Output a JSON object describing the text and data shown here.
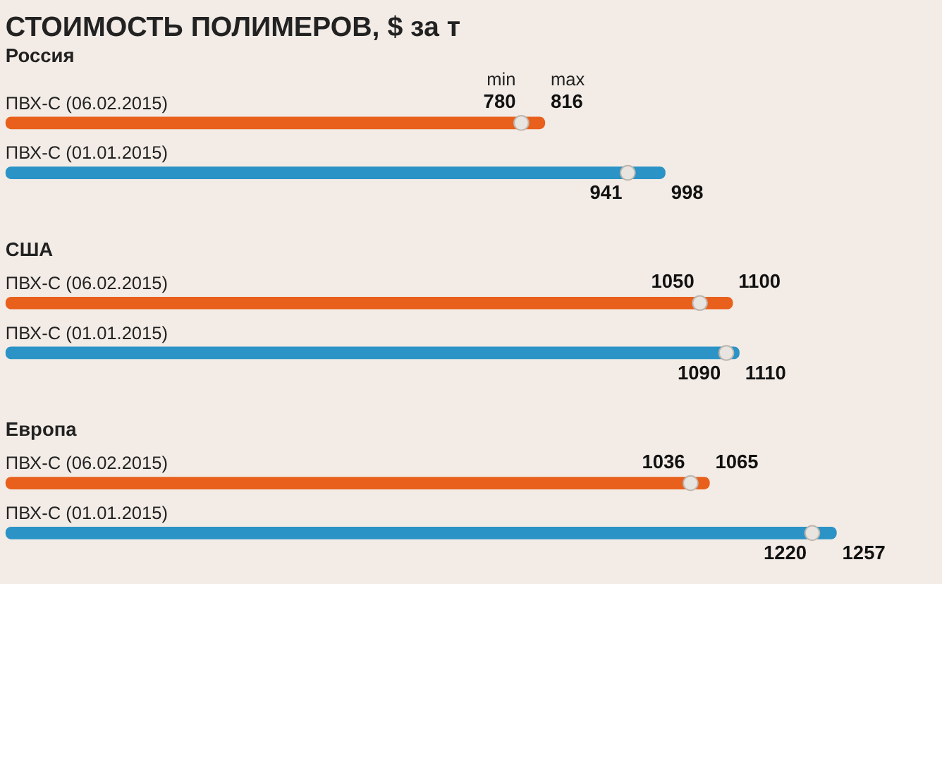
{
  "chart_data": [
    {
      "type": "bar",
      "orientation": "horizontal",
      "title": "СТОИМОСТЬ ПОЛИМЕРОВ, $ за т",
      "subtitle": "Россия",
      "categories": [
        "ПВХ-С (06.02.2015)",
        "ПВХ-С (01.01.2015)"
      ],
      "tick_labels": false,
      "data_labels": true,
      "series": [
        {
          "name": "max",
          "type": "bar",
          "colors": [
            "#e8601c",
            "#2b93c6"
          ],
          "values": [
            816,
            998
          ]
        },
        {
          "name": "min",
          "type": "scatter",
          "marker": "circle",
          "color": "#e8e4e0",
          "values": [
            780,
            941
          ]
        }
      ]
    },
    {
      "type": "bar",
      "orientation": "horizontal",
      "subtitle": "США",
      "categories": [
        "ПВХ-С (06.02.2015)",
        "ПВХ-С (01.01.2015)"
      ],
      "tick_labels": false,
      "data_labels": true,
      "series": [
        {
          "type": "bar",
          "colors": [
            "#e8601c",
            "#2b93c6"
          ],
          "values": [
            1100,
            1110
          ]
        },
        {
          "type": "scatter",
          "marker": "circle",
          "color": "#e8e4e0",
          "values": [
            1050,
            1090
          ]
        }
      ]
    },
    {
      "type": "bar",
      "orientation": "horizontal",
      "subtitle": "Европа",
      "categories": [
        "ПВХ-С (06.02.2015)",
        "ПВХ-С (01.01.2015)"
      ],
      "tick_labels": false,
      "data_labels": true,
      "series": [
        {
          "type": "bar",
          "colors": [
            "#e8601c",
            "#2b93c6"
          ],
          "values": [
            1065,
            1257
          ]
        },
        {
          "type": "scatter",
          "marker": "circle",
          "color": "#e8e4e0",
          "values": [
            1036,
            1220
          ]
        }
      ]
    }
  ]
}
